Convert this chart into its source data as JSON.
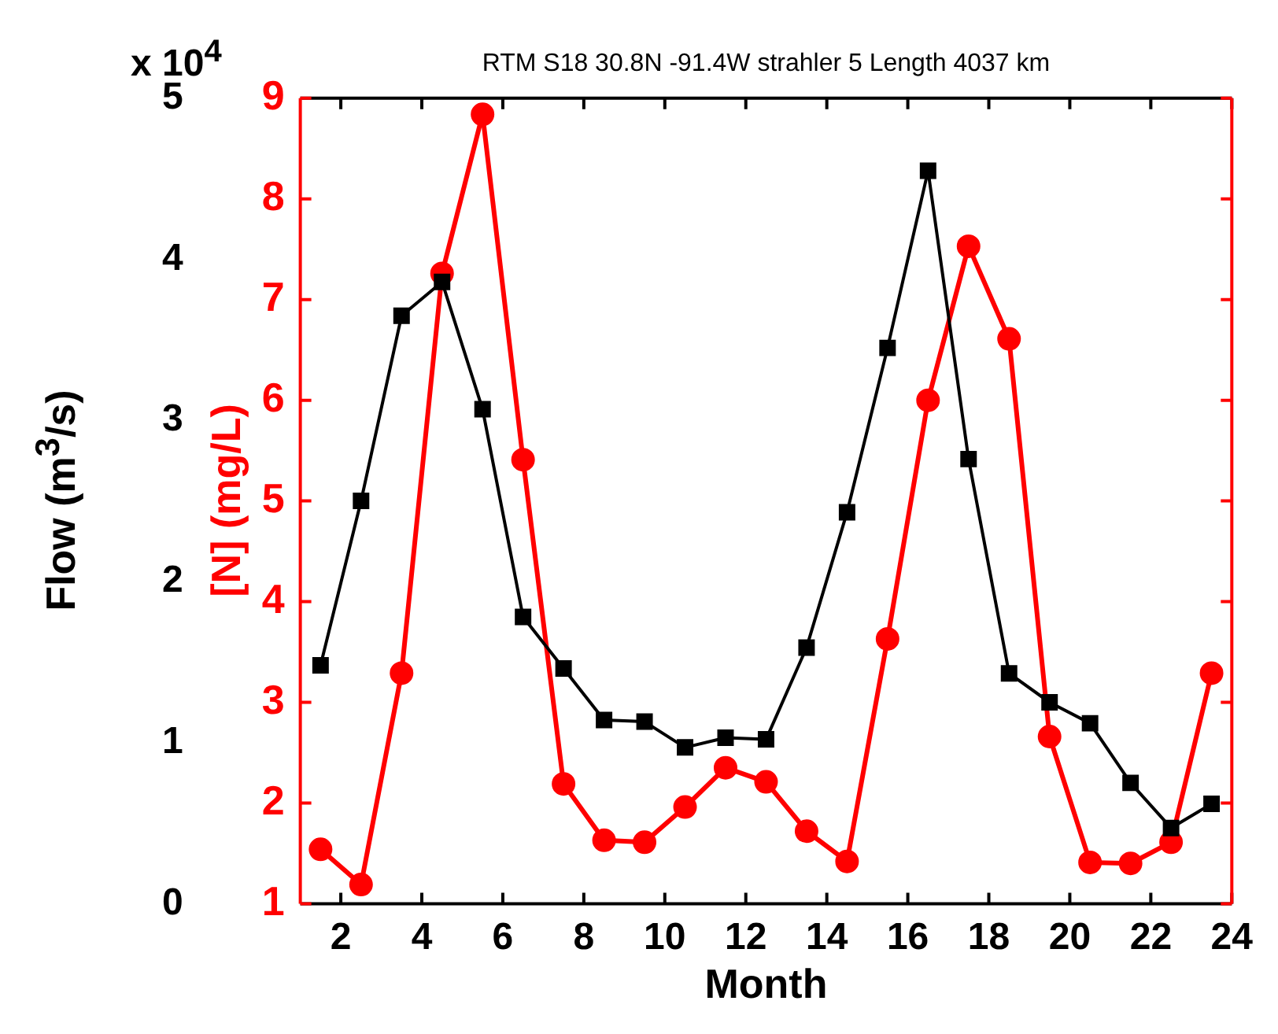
{
  "chart_data": {
    "type": "line",
    "title": "RTM S18 30.8N -91.4W strahler 5 Length 4037 km",
    "xlabel": "Month",
    "ylabel": "Flow (m$^{3}$/s)",
    "y2label": "[N] (mg/L)",
    "annotations": [
      "x 10$^{4}$"
    ],
    "xlim": [
      1,
      24
    ],
    "xticks": [
      2,
      4,
      6,
      8,
      10,
      12,
      14,
      16,
      18,
      20,
      22,
      24
    ],
    "ylim": [
      0,
      5
    ],
    "yticks": [
      0,
      1,
      2,
      3,
      4,
      5
    ],
    "y2lim": [
      1,
      9
    ],
    "y2ticks": [
      1,
      2,
      3,
      4,
      5,
      6,
      7,
      8,
      9
    ],
    "grid": false,
    "legend": false,
    "series": [
      {
        "color": "#000000",
        "marker": "square",
        "x": [
          1.5,
          2.5,
          3.5,
          4.5,
          5.5,
          6.5,
          7.5,
          8.5,
          9.5,
          10.5,
          11.5,
          12.5,
          13.5,
          14.5,
          15.5,
          16.5,
          17.5,
          18.5,
          19.5,
          20.5,
          21.5,
          22.5,
          23.5
        ],
        "values": [
          1.48,
          2.5,
          3.65,
          3.86,
          3.07,
          1.78,
          1.46,
          1.14,
          1.13,
          0.97,
          1.03,
          1.02,
          1.59,
          2.43,
          3.45,
          4.55,
          2.76,
          1.43,
          1.25,
          1.12,
          0.75,
          0.47,
          0.62
        ]
      },
      {
        "color": "#ff0000",
        "marker": "circle",
        "axis": "y2",
        "x": [
          1.5,
          2.5,
          3.5,
          4.5,
          5.5,
          6.5,
          7.5,
          8.5,
          9.5,
          10.5,
          11.5,
          12.5,
          13.5,
          14.5,
          15.5,
          16.5,
          17.5,
          18.5,
          19.5,
          20.5,
          21.5,
          22.5,
          23.5
        ],
        "values": [
          1.54,
          1.19,
          3.29,
          7.26,
          8.84,
          5.41,
          2.19,
          1.63,
          1.61,
          1.96,
          2.35,
          2.21,
          1.72,
          1.42,
          3.63,
          6.0,
          7.53,
          6.61,
          2.66,
          1.41,
          1.4,
          1.61,
          3.29
        ]
      }
    ]
  }
}
